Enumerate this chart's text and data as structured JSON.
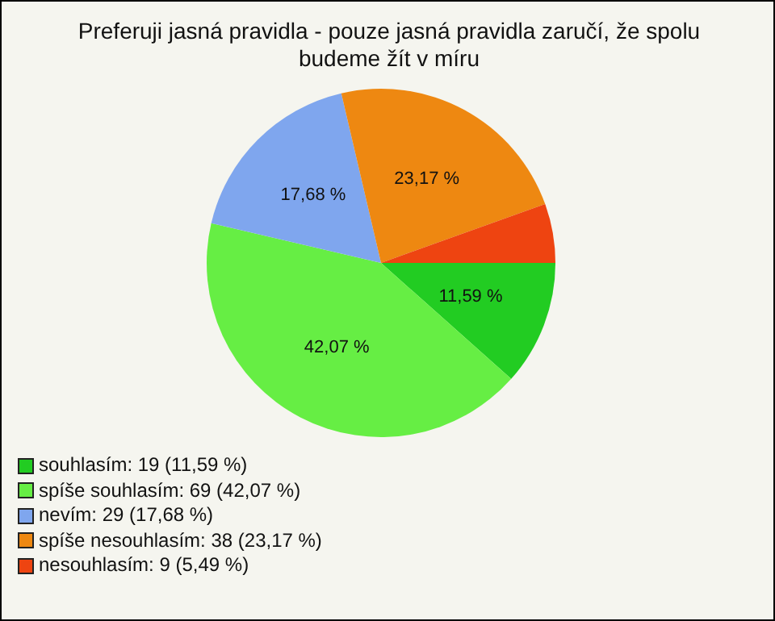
{
  "chart_data": {
    "type": "pie",
    "title": "Preferuji jasná pravidla - pouze jasná pravidla zaručí, že spolu budeme žít v míru",
    "categories": [
      "souhlasím: 19 (11,59 %)",
      "spíše souhlasím: 69 (42,07 %)",
      "nevím: 29 (17,68 %)",
      "spíše nesouhlasím: 38 (23,17 %)",
      "nesouhlasím: 9 (5,49 %)"
    ],
    "values": [
      11.59,
      42.07,
      17.68,
      23.17,
      5.49
    ],
    "colors": [
      "#22cc22",
      "#66ee44",
      "#7fa6ee",
      "#ee8811",
      "#ee4411"
    ],
    "value_labels": [
      "11,59 %",
      "42,07 %",
      "17,68 %",
      "23,17 %",
      null
    ],
    "legend": "bottom left"
  }
}
